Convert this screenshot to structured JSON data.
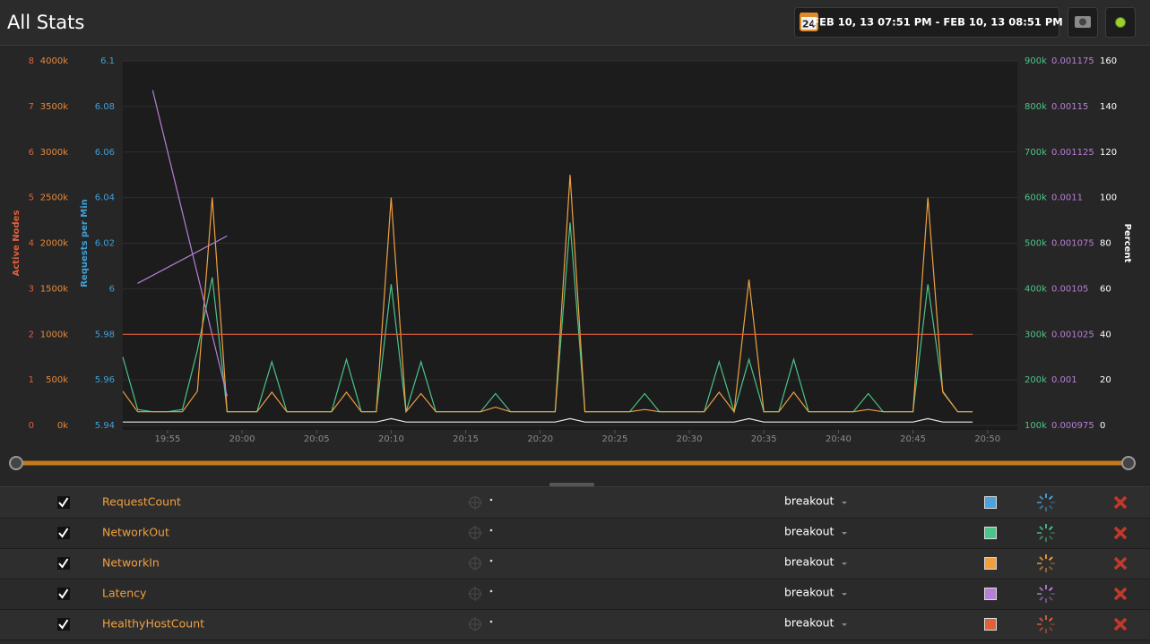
{
  "header": {
    "title": "All Stats",
    "calendar_day": "24",
    "date_range": "FEB 10, 13 07:51 PM - FEB 10, 13 08:51 PM"
  },
  "metrics_panel": {
    "control_label": "breakout"
  },
  "chart_data": {
    "type": "line",
    "grid": true,
    "x": [
      "19:52",
      "19:53",
      "19:54",
      "19:55",
      "19:56",
      "19:57",
      "19:58",
      "19:59",
      "20:00",
      "20:01",
      "20:02",
      "20:03",
      "20:04",
      "20:05",
      "20:06",
      "20:07",
      "20:08",
      "20:09",
      "20:10",
      "20:11",
      "20:12",
      "20:13",
      "20:14",
      "20:15",
      "20:16",
      "20:17",
      "20:18",
      "20:19",
      "20:20",
      "20:21",
      "20:22",
      "20:23",
      "20:24",
      "20:25",
      "20:26",
      "20:27",
      "20:28",
      "20:29",
      "20:30",
      "20:31",
      "20:32",
      "20:33",
      "20:34",
      "20:35",
      "20:36",
      "20:37",
      "20:38",
      "20:39",
      "20:40",
      "20:41",
      "20:42",
      "20:43",
      "20:44",
      "20:45",
      "20:46",
      "20:47",
      "20:48",
      "20:49"
    ],
    "xlim": [
      "19:52",
      "20:52"
    ],
    "xticks": [
      "19:55",
      "20:00",
      "20:05",
      "20:10",
      "20:15",
      "20:20",
      "20:25",
      "20:30",
      "20:35",
      "20:40",
      "20:45",
      "20:50"
    ],
    "axes": [
      {
        "title": "Active Nodes",
        "color": "#e0603c",
        "lim": [
          0,
          8
        ],
        "ticks": [
          0,
          1,
          2,
          3,
          4,
          5,
          6,
          7,
          8
        ]
      },
      {
        "color": "#e8893a",
        "lim": [
          0,
          4000
        ],
        "ticks": [
          {
            "value": 0,
            "label": "0k"
          },
          {
            "value": 500,
            "label": "500k"
          },
          {
            "value": 1000,
            "label": "1000k"
          },
          {
            "value": 1500,
            "label": "1500k"
          },
          {
            "value": 2000,
            "label": "2000k"
          },
          {
            "value": 2500,
            "label": "2500k"
          },
          {
            "value": 3000,
            "label": "3000k"
          },
          {
            "value": 3500,
            "label": "3500k"
          },
          {
            "value": 4000,
            "label": "4000k"
          }
        ]
      },
      {
        "title": "Requests per Min",
        "color": "#3fa0d8",
        "lim": [
          5.94,
          6.1
        ],
        "ticks": [
          5.94,
          5.96,
          5.98,
          6,
          6.02,
          6.04,
          6.06,
          6.08,
          6.1
        ]
      },
      {
        "color": "#4cc38a",
        "lim": [
          100,
          900
        ],
        "ticks": [
          {
            "value": 100,
            "label": "100k"
          },
          {
            "value": 200,
            "label": "200k"
          },
          {
            "value": 300,
            "label": "300k"
          },
          {
            "value": 400,
            "label": "400k"
          },
          {
            "value": 500,
            "label": "500k"
          },
          {
            "value": 600,
            "label": "600k"
          },
          {
            "value": 700,
            "label": "700k"
          },
          {
            "value": 800,
            "label": "800k"
          },
          {
            "value": 900,
            "label": "900k"
          }
        ]
      },
      {
        "color": "#b77fd8",
        "lim": [
          0.000975,
          0.001175
        ],
        "ticks": [
          0.000975,
          0.001,
          0.001025,
          0.00105,
          0.001075,
          0.0011,
          0.001125,
          0.00115,
          0.001175
        ]
      },
      {
        "title": "Percent",
        "color": "#ffffff",
        "lim": [
          0,
          160
        ],
        "ticks": [
          0,
          20,
          40,
          60,
          80,
          100,
          120,
          140,
          160
        ]
      }
    ],
    "series": [
      {
        "name": "RequestCount",
        "color": "#e8e8e8",
        "legend_color": "#4aa3df",
        "axis": 2,
        "values": [
          5.9415,
          5.9415,
          5.9415,
          5.9415,
          5.9415,
          5.9415,
          5.9415,
          5.9415,
          5.9415,
          5.9415,
          5.9415,
          5.9415,
          5.9415,
          5.9415,
          5.9415,
          5.9415,
          5.9415,
          5.9415,
          5.943,
          5.9415,
          5.9415,
          5.9415,
          5.9415,
          5.9415,
          5.9415,
          5.9415,
          5.9415,
          5.9415,
          5.9415,
          5.9415,
          5.943,
          5.9415,
          5.9415,
          5.9415,
          5.9415,
          5.9415,
          5.9415,
          5.9415,
          5.9415,
          5.9415,
          5.9415,
          5.9415,
          5.943,
          5.9415,
          5.9415,
          5.9415,
          5.9415,
          5.9415,
          5.9415,
          5.9415,
          5.9415,
          5.9415,
          5.9415,
          5.9415,
          5.943,
          5.9415,
          5.9415,
          5.9415
        ]
      },
      {
        "name": "NetworkOut",
        "color": "#4cc38a",
        "legend_color": "#4cc38a",
        "axis": 3,
        "values": [
          250,
          135,
          130,
          130,
          135,
          265,
          425,
          130,
          130,
          130,
          240,
          130,
          130,
          130,
          130,
          245,
          130,
          130,
          410,
          130,
          240,
          130,
          130,
          130,
          130,
          170,
          130,
          130,
          130,
          130,
          545,
          130,
          130,
          130,
          130,
          170,
          130,
          130,
          130,
          130,
          240,
          130,
          245,
          130,
          130,
          245,
          130,
          130,
          130,
          130,
          170,
          130,
          130,
          130,
          410,
          175,
          130,
          130
        ]
      },
      {
        "name": "NetworkIn",
        "color": "#f0a040",
        "legend_color": "#f0a040",
        "axis": 1,
        "values": [
          375,
          150,
          150,
          150,
          150,
          375,
          2500,
          150,
          150,
          150,
          365,
          150,
          150,
          150,
          150,
          365,
          150,
          150,
          2500,
          150,
          350,
          150,
          150,
          150,
          150,
          200,
          150,
          150,
          150,
          150,
          2750,
          150,
          150,
          150,
          150,
          175,
          150,
          150,
          150,
          150,
          365,
          150,
          1600,
          150,
          150,
          365,
          150,
          150,
          150,
          150,
          175,
          150,
          150,
          150,
          2500,
          365,
          150,
          150
        ]
      },
      {
        "name": "Latency",
        "color": "#b77fd8",
        "legend_color": "#b77fd8",
        "axis": 4,
        "x": [
          "19:53",
          "19:59",
          "19:59",
          "19:54",
          "19:59"
        ],
        "values": [
          0.001053,
          0.001079,
          null,
          0.001159,
          0.000991
        ]
      },
      {
        "name": "HealthyHostCount",
        "color": "#e0603c",
        "legend_color": "#e0603c",
        "axis": 0,
        "values": [
          2,
          2,
          2,
          2,
          2,
          2,
          2,
          2,
          2,
          2,
          2,
          2,
          2,
          2,
          2,
          2,
          2,
          2,
          2,
          2,
          2,
          2,
          2,
          2,
          2,
          2,
          2,
          2,
          2,
          2,
          2,
          2,
          2,
          2,
          2,
          2,
          2,
          2,
          2,
          2,
          2,
          2,
          2,
          2,
          2,
          2,
          2,
          2,
          2,
          2,
          2,
          2,
          2,
          2,
          2,
          2,
          2,
          2
        ]
      }
    ]
  }
}
